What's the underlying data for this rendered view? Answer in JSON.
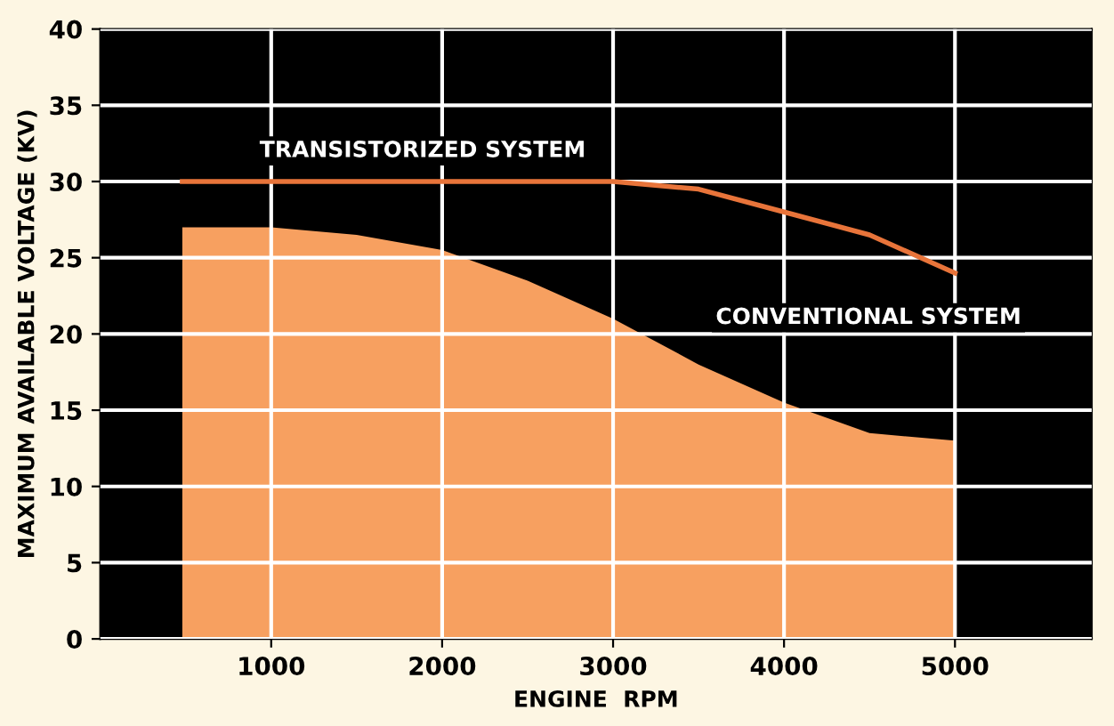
{
  "chart_data": {
    "type": "line",
    "xlabel": "ENGINE  RPM",
    "ylabel": "MAXIMUM AVAILABLE VOLTAGE (KV)",
    "xlim": [
      0,
      5800
    ],
    "xticks": [
      1000,
      2000,
      3000,
      4000,
      5000
    ],
    "ylim": [
      0,
      40
    ],
    "yticks": [
      0,
      5,
      10,
      15,
      20,
      25,
      30,
      35,
      40
    ],
    "grid": true,
    "series": [
      {
        "name": "CONVENTIONAL SYSTEM",
        "type": "area",
        "color": "#f7a060",
        "x": [
          480,
          1000,
          1500,
          2000,
          2500,
          3000,
          3500,
          4000,
          4500,
          5000
        ],
        "values": [
          27,
          27,
          26.5,
          25.5,
          23.5,
          21,
          18,
          15.5,
          13.5,
          13
        ]
      },
      {
        "name": "TRANSISTORIZED SYSTEM",
        "color": "#e8743a",
        "x": [
          480,
          1000,
          2000,
          3000,
          3500,
          4000,
          4500,
          5000
        ],
        "values": [
          30,
          30,
          30,
          30,
          29.5,
          28,
          26.5,
          24
        ]
      }
    ]
  }
}
